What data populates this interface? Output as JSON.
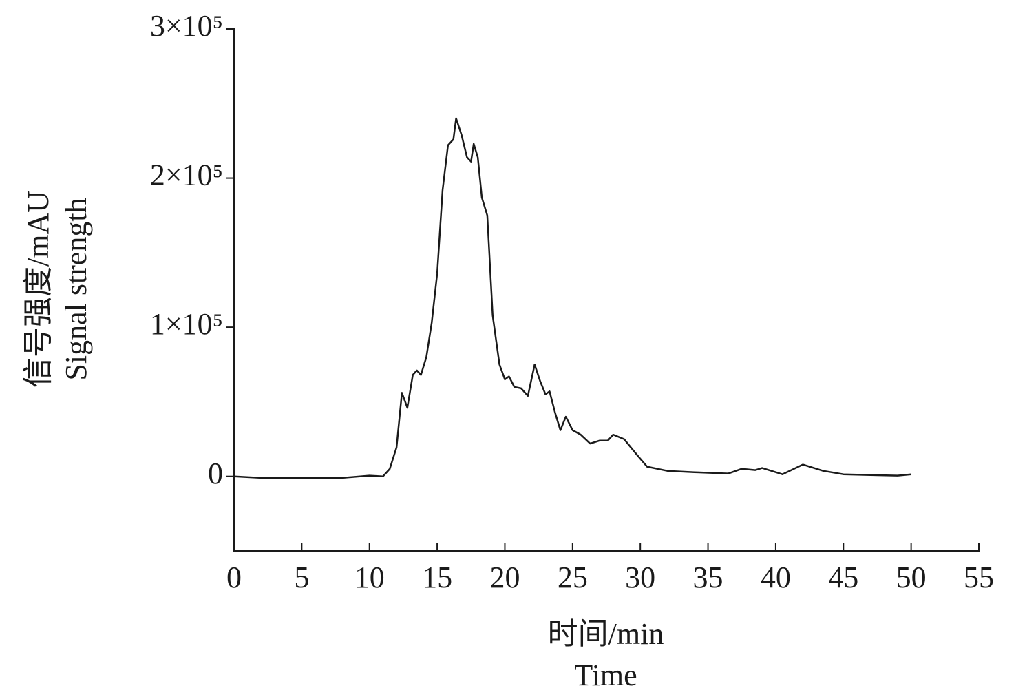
{
  "chart_data": {
    "type": "line",
    "xlabel": [
      "时间/min",
      "Time"
    ],
    "ylabel": [
      "信号强度/mAU",
      "Signal strength"
    ],
    "x": [
      0,
      2,
      5,
      8,
      10,
      11,
      11.5,
      12,
      12.4,
      12.8,
      13.2,
      13.5,
      13.8,
      14.2,
      14.6,
      15,
      15.4,
      15.8,
      16.2,
      16.4,
      16.8,
      17.2,
      17.5,
      17.7,
      18,
      18.3,
      18.7,
      19.1,
      19.6,
      20,
      20.3,
      20.7,
      21.2,
      21.7,
      22.2,
      22.6,
      23,
      23.3,
      23.7,
      24.1,
      24.5,
      25,
      25.6,
      26.3,
      27,
      27.6,
      28,
      28.8,
      29.8,
      30.5,
      32,
      34,
      36.5,
      37.5,
      38.5,
      39,
      40.5,
      42,
      43.5,
      45,
      47,
      49,
      50
    ],
    "values": [
      0,
      -1000,
      -1000,
      -1000,
      500,
      0,
      5000,
      19500,
      56000,
      46000,
      68000,
      71000,
      68000,
      80000,
      103000,
      136000,
      192000,
      222000,
      226000,
      240000,
      229000,
      214000,
      211000,
      223000,
      214000,
      187000,
      175000,
      108000,
      75000,
      65000,
      67000,
      60000,
      59000,
      54000,
      75000,
      64000,
      55000,
      57000,
      43000,
      31000,
      40000,
      31000,
      28000,
      22000,
      24000,
      24000,
      28000,
      25000,
      14000,
      6500,
      3700,
      2800,
      1900,
      5100,
      4200,
      5600,
      1400,
      7900,
      3700,
      1400,
      900,
      500,
      1400
    ],
    "color": "#1a1a1a",
    "xlim": [
      0,
      55
    ],
    "xticks": [
      0,
      5,
      10,
      15,
      20,
      25,
      30,
      35,
      40,
      45,
      50,
      55
    ],
    "ylim": [
      -50000,
      300000
    ],
    "yticks": [
      0,
      {
        "value": 100000,
        "label": "1×10⁵"
      },
      {
        "value": 200000,
        "label": "2×10⁵"
      },
      {
        "value": 300000,
        "label": "3×10⁵"
      }
    ],
    "grid": false
  }
}
